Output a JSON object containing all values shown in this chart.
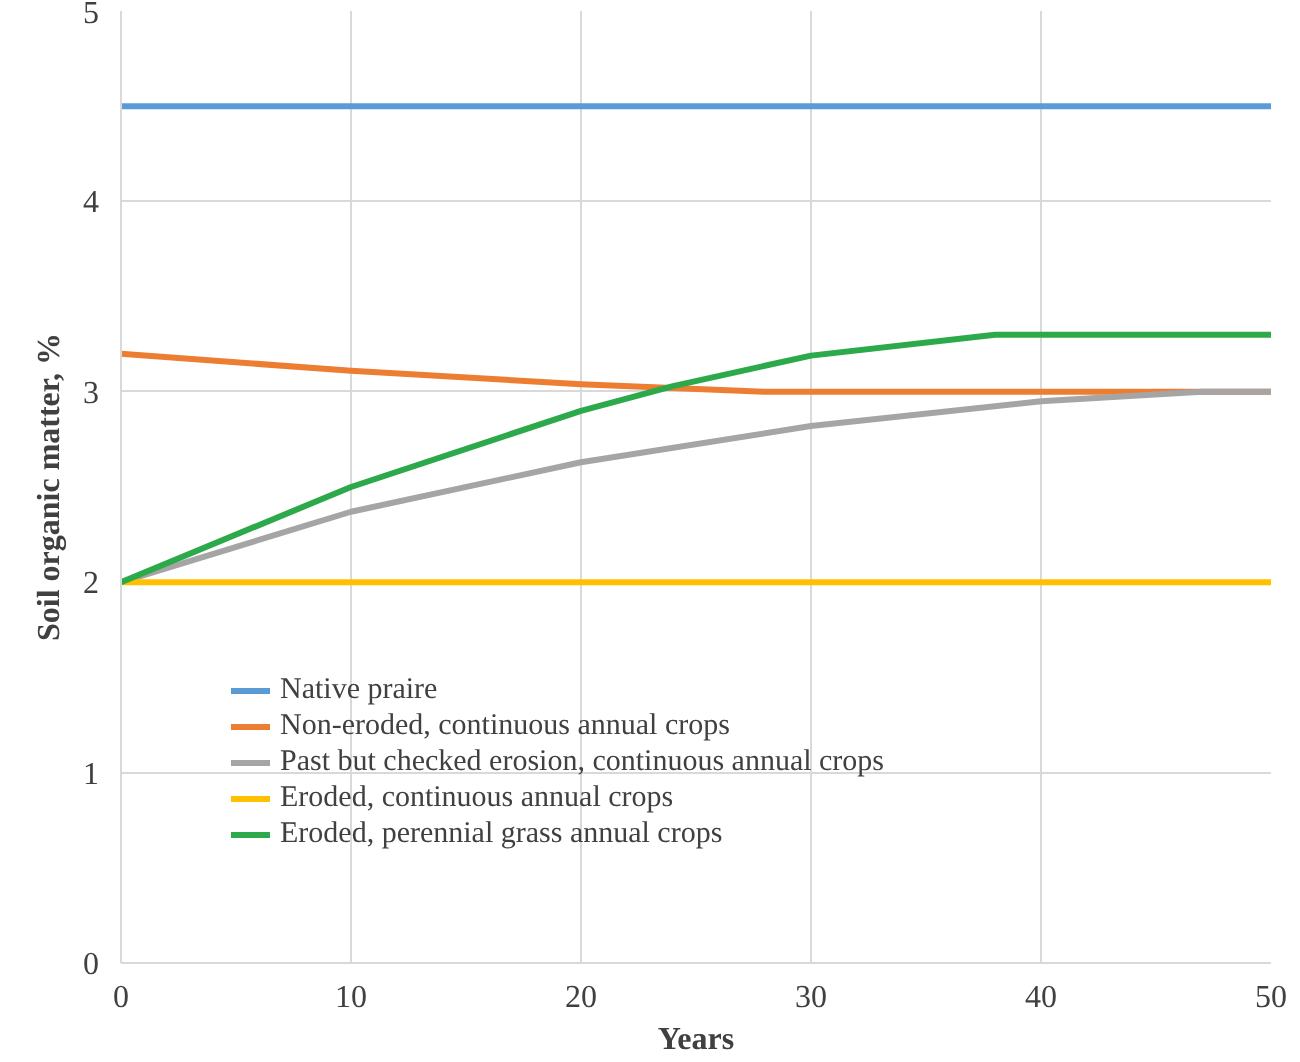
{
  "chart_data": {
    "type": "line",
    "xlabel": "Years",
    "ylabel": "Soil organic matter, %",
    "xlim": [
      0,
      50
    ],
    "xticks": [
      0,
      10,
      20,
      30,
      40,
      50
    ],
    "ylim": [
      0,
      5
    ],
    "yticks": [
      0,
      1,
      2,
      3,
      4,
      5
    ],
    "grid": true,
    "legend": "bottom left",
    "marker": "none",
    "line_style": "solid",
    "series": [
      {
        "name": "Native praire",
        "color": "#5b9bd5",
        "x": [
          0,
          50
        ],
        "values": [
          4.5,
          4.5
        ]
      },
      {
        "name": "Non-eroded, continuous annual crops",
        "color": "#ed7d31",
        "x": [
          0,
          10,
          20,
          28,
          50
        ],
        "values": [
          3.2,
          3.11,
          3.04,
          3.0,
          3.0
        ]
      },
      {
        "name": "Past but checked erosion, continuous annual crops",
        "color": "#a5a5a5",
        "x": [
          0,
          10,
          20,
          30,
          40,
          47,
          50
        ],
        "values": [
          2.0,
          2.37,
          2.63,
          2.82,
          2.95,
          3.0,
          3.0
        ]
      },
      {
        "name": "Eroded, continuous annual crops",
        "color": "#ffc000",
        "x": [
          0,
          50
        ],
        "values": [
          2.0,
          2.0
        ]
      },
      {
        "name": "Eroded, perennial grass annual crops",
        "color": "#2ca94a",
        "x": [
          0,
          10,
          20,
          24,
          30,
          38,
          50
        ],
        "values": [
          2.0,
          2.5,
          2.9,
          3.03,
          3.19,
          3.3,
          3.3
        ]
      }
    ]
  }
}
